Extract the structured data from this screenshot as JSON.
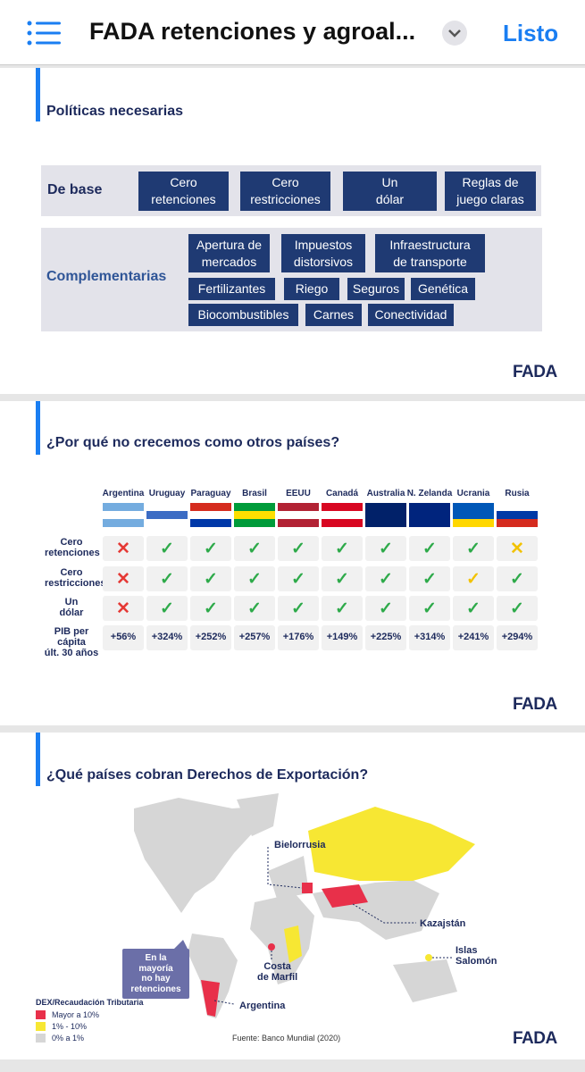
{
  "header": {
    "title": "FADA retenciones y agroal...",
    "done": "Listo"
  },
  "slides": [
    {
      "title": "Políticas necesarias",
      "groups": [
        {
          "label": "De base",
          "items": [
            "Cero\nretenciones",
            "Cero\nrestricciones",
            "Un\ndólar",
            "Reglas de\njuego claras"
          ]
        },
        {
          "label": "Complementarias",
          "items": [
            "Apertura de\nmercados",
            "Impuestos\ndistorsivos",
            "Infraestructura\nde transporte",
            "Fertilizantes",
            "Riego",
            "Seguros",
            "Genética",
            "Biocombustibles",
            "Carnes",
            "Conectividad"
          ]
        }
      ],
      "logo": "FADA"
    },
    {
      "title": "¿Por qué no crecemos como otros países?",
      "columns": [
        "Argentina",
        "Uruguay",
        "Paraguay",
        "Brasil",
        "EEUU",
        "Canadá",
        "Australia",
        "N. Zelanda",
        "Ucrania",
        "Rusia"
      ],
      "rows": [
        {
          "label": "Cero\nretenciones",
          "cells": [
            {
              "symbol": "✕",
              "color": "#e53935"
            },
            {
              "symbol": "✓",
              "color": "#2eaa4a"
            },
            {
              "symbol": "✓",
              "color": "#2eaa4a"
            },
            {
              "symbol": "✓",
              "color": "#2eaa4a"
            },
            {
              "symbol": "✓",
              "color": "#2eaa4a"
            },
            {
              "symbol": "✓",
              "color": "#2eaa4a"
            },
            {
              "symbol": "✓",
              "color": "#2eaa4a"
            },
            {
              "symbol": "✓",
              "color": "#2eaa4a"
            },
            {
              "symbol": "✓",
              "color": "#2eaa4a"
            },
            {
              "symbol": "✕",
              "color": "#f2c200"
            }
          ]
        },
        {
          "label": "Cero\nrestricciones",
          "cells": [
            {
              "symbol": "✕",
              "color": "#e53935"
            },
            {
              "symbol": "✓",
              "color": "#2eaa4a"
            },
            {
              "symbol": "✓",
              "color": "#2eaa4a"
            },
            {
              "symbol": "✓",
              "color": "#2eaa4a"
            },
            {
              "symbol": "✓",
              "color": "#2eaa4a"
            },
            {
              "symbol": "✓",
              "color": "#2eaa4a"
            },
            {
              "symbol": "✓",
              "color": "#2eaa4a"
            },
            {
              "symbol": "✓",
              "color": "#2eaa4a"
            },
            {
              "symbol": "✓",
              "color": "#f2c200"
            },
            {
              "symbol": "✓",
              "color": "#2eaa4a"
            }
          ]
        },
        {
          "label": "Un\ndólar",
          "cells": [
            {
              "symbol": "✕",
              "color": "#e53935"
            },
            {
              "symbol": "✓",
              "color": "#2eaa4a"
            },
            {
              "symbol": "✓",
              "color": "#2eaa4a"
            },
            {
              "symbol": "✓",
              "color": "#2eaa4a"
            },
            {
              "symbol": "✓",
              "color": "#2eaa4a"
            },
            {
              "symbol": "✓",
              "color": "#2eaa4a"
            },
            {
              "symbol": "✓",
              "color": "#2eaa4a"
            },
            {
              "symbol": "✓",
              "color": "#2eaa4a"
            },
            {
              "symbol": "✓",
              "color": "#2eaa4a"
            },
            {
              "symbol": "✓",
              "color": "#2eaa4a"
            }
          ]
        }
      ],
      "pib": {
        "label": "PIB per cápita\núlt. 30 años",
        "values": [
          "+56%",
          "+324%",
          "+252%",
          "+257%",
          "+176%",
          "+149%",
          "+225%",
          "+314%",
          "+241%",
          "+294%"
        ]
      },
      "logo": "FADA"
    },
    {
      "title": "¿Qué países cobran Derechos de Exportación?",
      "labels": [
        "Bielorrusia",
        "Kazajstán",
        "Islas\nSalomón",
        "Costa\nde Marfil",
        "Argentina"
      ],
      "callout": "En la\nmayoría\nno hay\nretenciones",
      "legend": {
        "title": "DEX/Recaudación Tributaria",
        "items": [
          {
            "label": "Mayor a 10%",
            "color": "#e8304a"
          },
          {
            "label": "1% - 10%",
            "color": "#f7e733"
          },
          {
            "label": "0% a 1%",
            "color": "#d6d6d6"
          }
        ]
      },
      "source": "Fuente: Banco Mundial (2020)",
      "logo": "FADA"
    }
  ]
}
